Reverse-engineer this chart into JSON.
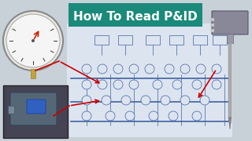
{
  "bg_color": "#c8d0d8",
  "title_box_color": "#1a8a7a",
  "title_text": "How To Read P&ID",
  "title_text_color": "#ffffff",
  "title_fontsize": 11,
  "arrow_color": "#cc0000",
  "pid_bg": "#dce4f0",
  "pid_line_color": "#4060a0",
  "gauge_bg": "#f5f5f5",
  "transmitter_bg": "#555566",
  "thermowell_bg": "#888899",
  "fig_width": 3.2,
  "fig_height": 1.8,
  "dpi": 100
}
